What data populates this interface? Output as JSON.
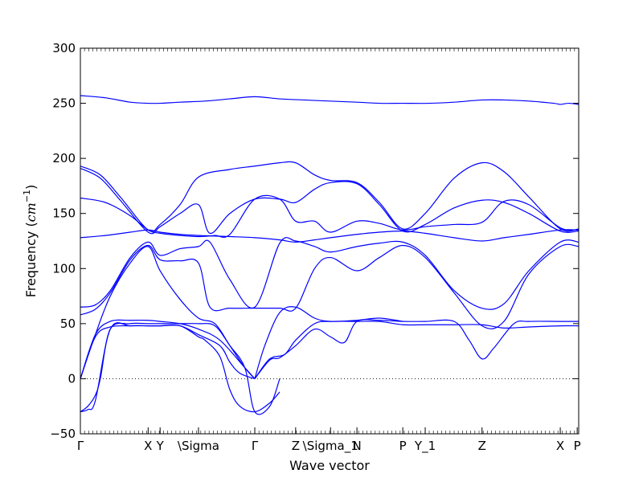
{
  "chart_data": {
    "type": "line",
    "title": "",
    "xlabel": "Wave vector",
    "ylabel": "Frequency",
    "ylabel_unit": "cm",
    "ylabel_unit_sup": "−1",
    "ylim": [
      -50,
      300
    ],
    "yticks": [
      -50,
      0,
      50,
      100,
      150,
      200,
      250,
      300
    ],
    "xlim": [
      0,
      1
    ],
    "grid": false,
    "line_color": "#0000ff",
    "zero_line": true,
    "high_symmetry_points": [
      {
        "label": "Γ",
        "x": 0.0
      },
      {
        "label": "X",
        "x": 0.136
      },
      {
        "label": "Y",
        "x": 0.16
      },
      {
        "label": "\\Sigma",
        "x": 0.237
      },
      {
        "label": "Γ",
        "x": 0.35
      },
      {
        "label": "Z",
        "x": 0.432
      },
      {
        "label": "\\Sigma_1",
        "x": 0.502
      },
      {
        "label": "N",
        "x": 0.555
      },
      {
        "label": "P",
        "x": 0.647
      },
      {
        "label": "Y_1",
        "x": 0.692
      },
      {
        "label": "Z",
        "x": 0.806
      },
      {
        "label": "X",
        "x": 0.963
      },
      {
        "label": "P",
        "x": 0.997
      }
    ],
    "series": [
      {
        "x": [
          0.0,
          0.05,
          0.1,
          0.136,
          0.16,
          0.2,
          0.25,
          0.3,
          0.35,
          0.4,
          0.45,
          0.5,
          0.555,
          0.6,
          0.647,
          0.7,
          0.75,
          0.806,
          0.85,
          0.9,
          0.95,
          0.963,
          0.98,
          1.0
        ],
        "y": [
          257,
          255,
          251,
          250,
          250,
          251,
          252,
          254,
          256,
          254,
          253,
          252,
          251,
          250,
          250,
          250,
          251,
          253,
          253,
          252,
          250,
          249,
          250,
          249
        ]
      },
      {
        "x": [
          0.0,
          0.04,
          0.08,
          0.136,
          0.16,
          0.2,
          0.237,
          0.3,
          0.35,
          0.4,
          0.432,
          0.47,
          0.502,
          0.555,
          0.6,
          0.647,
          0.692,
          0.75,
          0.806,
          0.85,
          0.9,
          0.963,
          1.0
        ],
        "y": [
          193,
          185,
          165,
          135,
          140,
          158,
          183,
          190,
          193,
          196,
          196,
          185,
          180,
          178,
          160,
          136,
          150,
          182,
          196,
          188,
          165,
          136,
          136
        ]
      },
      {
        "x": [
          0.0,
          0.04,
          0.08,
          0.136,
          0.16,
          0.2,
          0.237,
          0.26,
          0.3,
          0.35,
          0.4,
          0.432,
          0.47,
          0.502,
          0.555,
          0.6,
          0.647,
          0.692,
          0.75,
          0.806,
          0.85,
          0.9,
          0.963,
          1.0
        ],
        "y": [
          191,
          182,
          162,
          133,
          138,
          150,
          158,
          132,
          150,
          163,
          163,
          160,
          172,
          178,
          177,
          158,
          134,
          140,
          155,
          162,
          160,
          150,
          134,
          134
        ]
      },
      {
        "x": [
          0.0,
          0.05,
          0.1,
          0.136,
          0.16,
          0.2,
          0.237,
          0.27,
          0.3,
          0.35,
          0.4,
          0.432,
          0.47,
          0.502,
          0.555,
          0.6,
          0.647,
          0.692,
          0.75,
          0.806,
          0.85,
          0.9,
          0.963,
          1.0
        ],
        "y": [
          164,
          160,
          148,
          135,
          132,
          130,
          129,
          130,
          131,
          163,
          163,
          143,
          143,
          133,
          143,
          141,
          135,
          138,
          140,
          142,
          161,
          158,
          137,
          135
        ]
      },
      {
        "x": [
          0.0,
          0.05,
          0.1,
          0.136,
          0.16,
          0.2,
          0.237,
          0.3,
          0.35,
          0.4,
          0.432,
          0.47,
          0.502,
          0.555,
          0.6,
          0.647,
          0.692,
          0.75,
          0.806,
          0.85,
          0.9,
          0.963,
          1.0
        ],
        "y": [
          128,
          130,
          133,
          135,
          133,
          131,
          130,
          129,
          128,
          126,
          124,
          126,
          128,
          131,
          133,
          134,
          132,
          128,
          125,
          128,
          131,
          135,
          135
        ]
      },
      {
        "x": [
          0.0,
          0.03,
          0.06,
          0.1,
          0.136,
          0.16,
          0.2,
          0.237,
          0.26,
          0.3,
          0.35,
          0.4,
          0.432,
          0.47,
          0.502,
          0.555,
          0.6,
          0.647,
          0.692,
          0.75,
          0.806,
          0.85,
          0.9,
          0.963,
          1.0
        ],
        "y": [
          65,
          67,
          80,
          110,
          124,
          112,
          118,
          120,
          124,
          90,
          65,
          123,
          125,
          120,
          115,
          120,
          123,
          124,
          112,
          80,
          64,
          68,
          98,
          124,
          124
        ]
      },
      {
        "x": [
          0.0,
          0.03,
          0.06,
          0.1,
          0.136,
          0.16,
          0.2,
          0.237,
          0.26,
          0.3,
          0.35,
          0.4,
          0.432,
          0.47,
          0.502,
          0.555,
          0.6,
          0.647,
          0.692,
          0.75,
          0.806,
          0.85,
          0.9,
          0.963,
          1.0
        ],
        "y": [
          58,
          63,
          78,
          108,
          121,
          108,
          107,
          105,
          65,
          64,
          64,
          64,
          64,
          100,
          110,
          98,
          110,
          121,
          110,
          78,
          48,
          52,
          95,
          120,
          120
        ]
      },
      {
        "x": [
          0.0,
          0.03,
          0.06,
          0.1,
          0.136,
          0.16,
          0.2,
          0.237,
          0.27,
          0.3,
          0.33,
          0.35
        ],
        "y": [
          0,
          40,
          75,
          105,
          120,
          98,
          72,
          55,
          50,
          30,
          10,
          0
        ]
      },
      {
        "x": [
          0.35,
          0.37,
          0.4,
          0.432,
          0.47,
          0.502,
          0.555,
          0.6,
          0.647
        ],
        "y": [
          0,
          30,
          60,
          65,
          55,
          52,
          53,
          55,
          52
        ]
      },
      {
        "x": [
          0.0,
          0.03,
          0.06,
          0.1,
          0.136,
          0.16,
          0.2,
          0.237,
          0.28,
          0.33,
          0.35
        ],
        "y": [
          0,
          40,
          52,
          53,
          53,
          52,
          50,
          45,
          35,
          10,
          0
        ]
      },
      {
        "x": [
          0.0,
          0.03,
          0.06,
          0.1,
          0.136,
          0.16,
          0.2,
          0.237,
          0.28,
          0.3,
          0.32,
          0.35
        ],
        "y": [
          0,
          38,
          47,
          48,
          48,
          48,
          48,
          40,
          30,
          15,
          5,
          0
        ]
      },
      {
        "x": [
          0.35,
          0.38,
          0.41,
          0.432,
          0.47,
          0.502,
          0.555,
          0.6,
          0.647,
          0.692,
          0.75,
          0.806,
          0.85,
          0.9,
          0.963,
          1.0
        ],
        "y": [
          0,
          18,
          22,
          35,
          50,
          52,
          52,
          52,
          49,
          49,
          49,
          49,
          46,
          47,
          48,
          48
        ]
      },
      {
        "x": [
          0.35,
          0.38,
          0.4,
          0.432,
          0.47,
          0.502,
          0.53,
          0.555,
          0.6,
          0.647,
          0.692,
          0.75,
          0.78,
          0.806,
          0.83,
          0.87,
          0.9,
          0.963,
          1.0
        ],
        "y": [
          0,
          17,
          19,
          30,
          45,
          38,
          33,
          52,
          53,
          52,
          52,
          52,
          35,
          18,
          28,
          50,
          52,
          52,
          52
        ]
      },
      {
        "x": [
          0.0,
          0.015,
          0.03,
          0.04,
          0.06,
          0.1,
          0.136,
          0.16,
          0.2,
          0.237,
          0.27,
          0.3,
          0.33,
          0.35,
          0.38,
          0.4
        ],
        "y": [
          -30,
          -25,
          -15,
          0,
          45,
          50,
          50,
          50,
          50,
          50,
          48,
          30,
          10,
          -30,
          -25,
          0
        ]
      },
      {
        "x": [
          0.0,
          0.015,
          0.03,
          0.06,
          0.1,
          0.136,
          0.16,
          0.2,
          0.237,
          0.25,
          0.28,
          0.3,
          0.32,
          0.35,
          0.38,
          0.4
        ],
        "y": [
          -30,
          -28,
          -20,
          45,
          48,
          48,
          48,
          48,
          38,
          35,
          20,
          -10,
          -25,
          -30,
          -22,
          -12
        ]
      }
    ]
  }
}
